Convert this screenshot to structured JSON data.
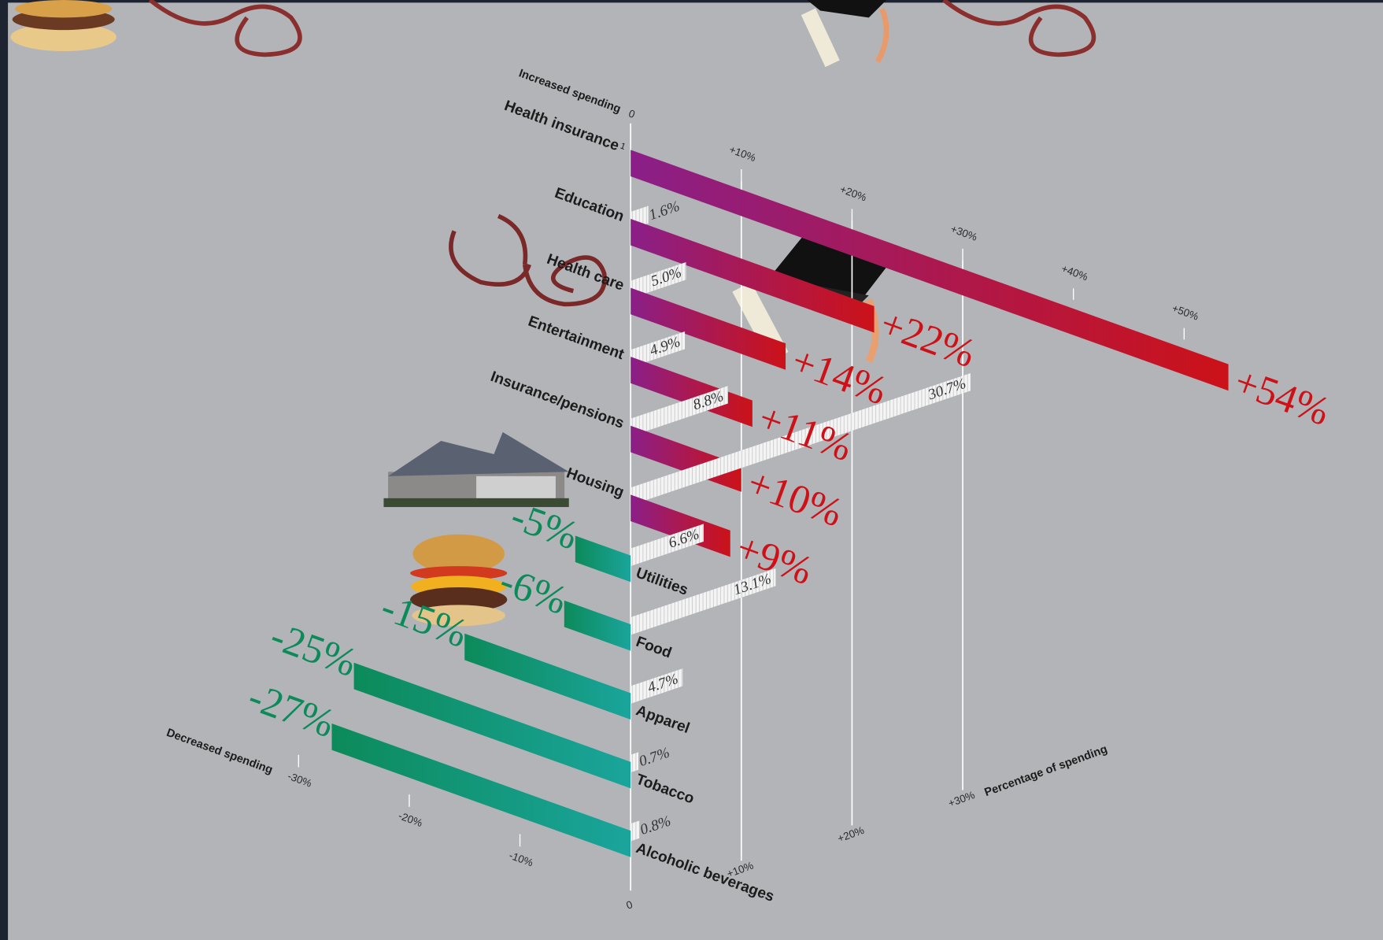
{
  "chart_data": {
    "type": "isometric-bar",
    "increased_label": "Increased spending",
    "decreased_label": "Decreased spending",
    "share_axis_label": "Percentage of spending",
    "categories": [
      "Health insurance",
      "Education",
      "Health care",
      "Entertainment",
      "Insurance/pensions",
      "Housing",
      "Utilities",
      "Food",
      "Apparel",
      "Tobacco",
      "Alcoholic beverages"
    ],
    "category_marks": [
      "1",
      null,
      null,
      null,
      null,
      null,
      null,
      null,
      null,
      null,
      null
    ],
    "change": {
      "values": [
        54,
        22,
        14,
        11,
        10,
        9,
        -5,
        -6,
        -15,
        -25,
        -27
      ],
      "value_labels": [
        "+54%",
        "+22%",
        "+14%",
        "+11%",
        "+10%",
        "+9%",
        "-5%",
        "-6%",
        "-15%",
        "-25%",
        "-27%"
      ],
      "colors": {
        "increase": [
          "#8a1f88",
          "#cc1218"
        ],
        "decrease": [
          "#0c8a5a",
          "#1aa59c"
        ]
      }
    },
    "share": {
      "values": [
        null,
        1.6,
        5.0,
        4.9,
        8.8,
        30.7,
        6.6,
        13.1,
        4.7,
        0.7,
        0.8
      ],
      "value_labels": [
        null,
        "1.6%",
        "5.0%",
        "4.9%",
        "8.8%",
        "30.7%",
        "6.6%",
        "13.1%",
        "4.7%",
        "0.7%",
        "0.8%"
      ]
    },
    "change_lim": [
      -30,
      55
    ],
    "change_ticks_up": [
      0,
      {
        "value": 10,
        "label": "+10%"
      },
      {
        "value": 20,
        "label": "+20%"
      },
      {
        "value": 30,
        "label": "+30%"
      },
      {
        "value": 40,
        "label": "+40%"
      },
      {
        "value": 50,
        "label": "+50%"
      }
    ],
    "change_ticks_down": [
      {
        "value": -30,
        "label": "-30%"
      },
      {
        "value": -20,
        "label": "-20%"
      },
      {
        "value": -10,
        "label": "-10%"
      }
    ],
    "share_lim": [
      0,
      35
    ],
    "share_ticks": [
      0,
      {
        "value": 10,
        "label": "+10%"
      },
      {
        "value": 20,
        "label": "+20%"
      },
      {
        "value": 30,
        "label": "+30%"
      }
    ]
  }
}
